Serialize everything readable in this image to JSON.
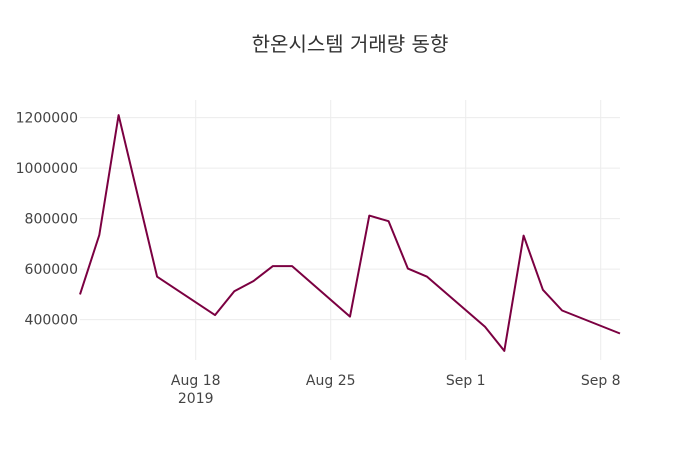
{
  "chart_data": {
    "type": "line",
    "title": "한온시스템 거래량 동향",
    "xlabel": "",
    "ylabel": "",
    "x": [
      "2019-08-12",
      "2019-08-13",
      "2019-08-14",
      "2019-08-16",
      "2019-08-19",
      "2019-08-20",
      "2019-08-21",
      "2019-08-22",
      "2019-08-23",
      "2019-08-26",
      "2019-08-27",
      "2019-08-28",
      "2019-08-29",
      "2019-08-30",
      "2019-09-02",
      "2019-09-03",
      "2019-09-04",
      "2019-09-05",
      "2019-09-06",
      "2019-09-09"
    ],
    "series": [
      {
        "name": "",
        "color": "#7b0041",
        "values": [
          500000,
          735000,
          1210000,
          570000,
          418000,
          512000,
          553000,
          612000,
          612000,
          412000,
          812000,
          790000,
          602000,
          570000,
          372000,
          276000,
          733000,
          518000,
          436000,
          345000
        ]
      }
    ],
    "xlim": [
      "2019-08-12",
      "2019-09-09"
    ],
    "ylim": [
      240000,
      1270000
    ],
    "y_ticks": [
      400000,
      600000,
      800000,
      1000000,
      1200000
    ],
    "y_tick_labels": [
      "400000",
      "600000",
      "800000",
      "1000000",
      "1200000"
    ],
    "x_ticks": [
      "2019-08-18",
      "2019-08-25",
      "2019-09-01",
      "2019-09-08"
    ],
    "x_tick_labels": [
      "Aug 18",
      "Aug 25",
      "Sep 1",
      "Sep 8"
    ],
    "x_tick_sublabel": "2019",
    "grid": true,
    "legend": "none"
  }
}
